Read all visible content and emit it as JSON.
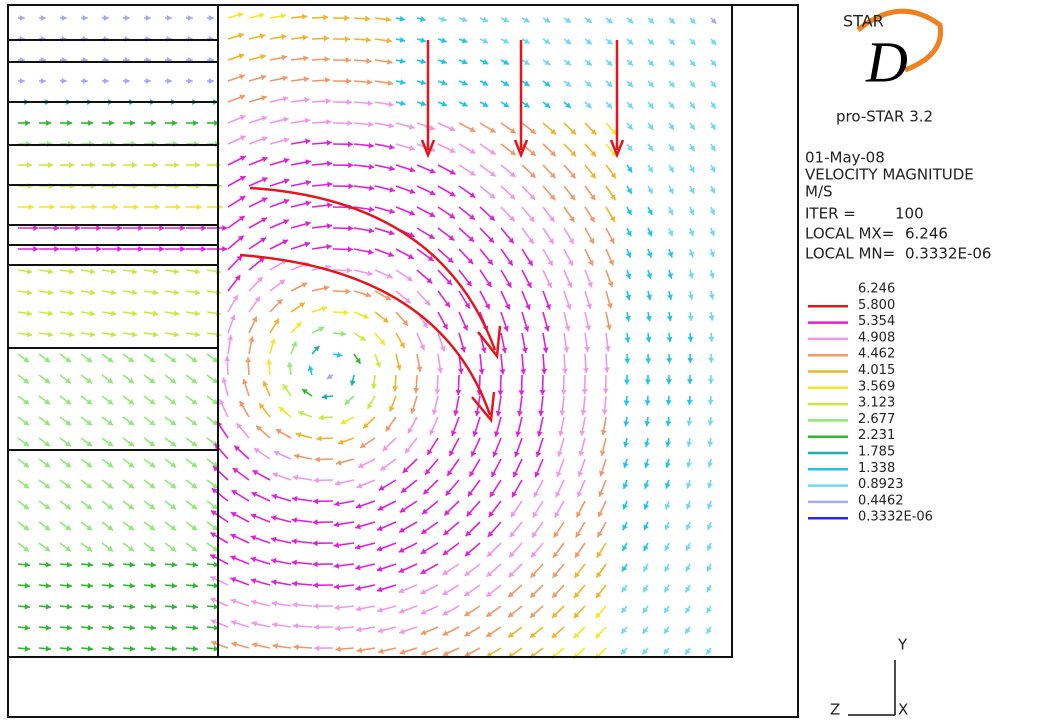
{
  "logo": {
    "top": "STAR",
    "letter": "D",
    "product": "pro-STAR 3.2"
  },
  "info": {
    "date": "01-May-08",
    "quantity": "VELOCITY MAGNITUDE",
    "unit": "M/S",
    "iter": {
      "label": "ITER =",
      "value": "100"
    },
    "max": {
      "label": "LOCAL MX=",
      "value": "6.246"
    },
    "min": {
      "label": "LOCAL MN=",
      "value": "0.3332E-06"
    }
  },
  "legend": [
    {
      "label": "6.246"
    },
    {
      "label": "5.800",
      "color": "#e8141c"
    },
    {
      "label": "5.354",
      "color": "#e020d8"
    },
    {
      "label": "4.908",
      "color": "#f098e8"
    },
    {
      "label": "4.462",
      "color": "#f09868"
    },
    {
      "label": "4.015",
      "color": "#f0b428"
    },
    {
      "label": "3.569",
      "color": "#f0e828"
    },
    {
      "label": "3.123",
      "color": "#c4ec40"
    },
    {
      "label": "2.677",
      "color": "#90e878"
    },
    {
      "label": "2.231",
      "color": "#30b830"
    },
    {
      "label": "1.785",
      "color": "#20b0a8"
    },
    {
      "label": "1.338",
      "color": "#20c4e8"
    },
    {
      "label": "0.8923",
      "color": "#70d8f0"
    },
    {
      "label": "0.4462",
      "color": "#a8a8f0"
    },
    {
      "label": "0.3332E-06",
      "color": "#2828e0"
    }
  ],
  "axes": {
    "y": "Y",
    "z": "Z",
    "x": "X"
  }
}
